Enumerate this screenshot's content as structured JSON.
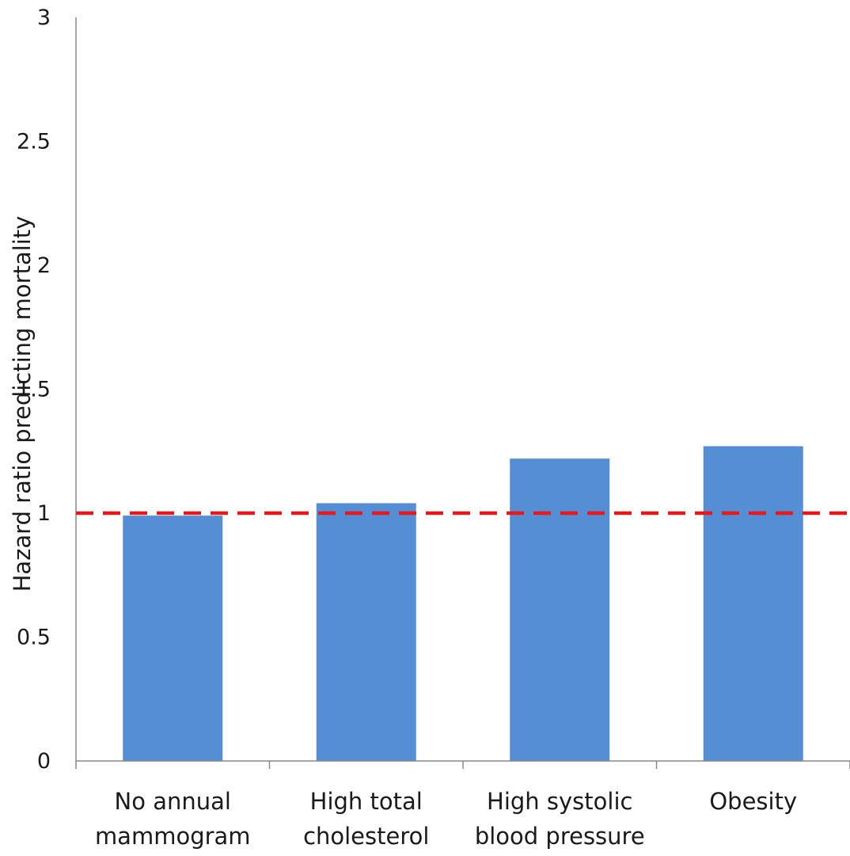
{
  "chart_data": {
    "type": "bar",
    "title": "",
    "xlabel": "",
    "ylabel": "Hazard ratio predicting mortality",
    "categories": [
      [
        "No annual",
        "mammogram"
      ],
      [
        "High total",
        "cholesterol"
      ],
      [
        "High systolic",
        "blood pressure"
      ],
      [
        "Obesity"
      ]
    ],
    "values": [
      0.99,
      1.04,
      1.22,
      1.27
    ],
    "ylim": [
      0,
      3
    ],
    "yticks": [
      "0",
      "0.5",
      "1",
      "1.5",
      "2",
      "2.5",
      "3"
    ],
    "reference_line": {
      "value": 1.0,
      "style": "dashed",
      "color": "#e8191b"
    },
    "bar_color": "#558ed5",
    "grid": false,
    "legend": "none"
  }
}
